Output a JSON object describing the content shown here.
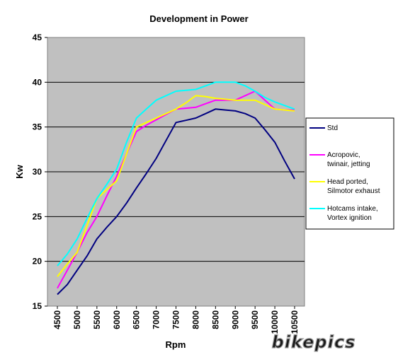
{
  "chart_data": {
    "type": "line",
    "title": "Development in Power",
    "xlabel": "Rpm",
    "ylabel": "Kw",
    "categories": [
      "4500",
      "5000",
      "5500",
      "6000",
      "6500",
      "7000",
      "7500",
      "8000",
      "8500",
      "9000",
      "9500",
      "10000",
      "10500"
    ],
    "ylim": [
      15,
      45
    ],
    "yticks": [
      15,
      20,
      25,
      30,
      35,
      40,
      45
    ],
    "grid": "horizontal",
    "legend_position": "right",
    "plot_background": "#c0c0c0",
    "series": [
      {
        "name": "Std",
        "color": "#000080",
        "x": [
          4500,
          4750,
          5000,
          5250,
          5500,
          5750,
          6000,
          6250,
          6500,
          6750,
          7000,
          7250,
          7500,
          7750,
          8000,
          8250,
          8500,
          8750,
          9000,
          9250,
          9500,
          9750,
          10000,
          10250,
          10500
        ],
        "values": [
          16.3,
          17.4,
          19.0,
          20.6,
          22.5,
          23.8,
          25.0,
          26.5,
          28.2,
          29.8,
          31.5,
          33.5,
          35.5,
          35.75,
          36.0,
          36.5,
          37.0,
          36.9,
          36.8,
          36.5,
          36.0,
          34.7,
          33.3,
          31.2,
          29.2
        ]
      },
      {
        "name": "Acropovic, twinair, jetting",
        "color": "#ff00ff",
        "x": [
          4500,
          4750,
          5000,
          5250,
          5500,
          5750,
          6000,
          6250,
          6500,
          6750,
          7000,
          7250,
          7500,
          7750,
          8000,
          8250,
          8500,
          8750,
          9000,
          9250,
          9500,
          9750,
          10000,
          10250,
          10500
        ],
        "values": [
          17.0,
          19.0,
          21.0,
          23.2,
          25.0,
          27.3,
          29.5,
          32.0,
          34.5,
          35.2,
          35.8,
          36.4,
          37.0,
          37.1,
          37.2,
          37.6,
          38.0,
          38.0,
          38.0,
          38.5,
          39.0,
          38.0,
          37.0,
          36.9,
          36.9
        ]
      },
      {
        "name": "Head ported, Silmotor exhaust",
        "color": "#ffff00",
        "x": [
          4500,
          4750,
          5000,
          5250,
          5500,
          5750,
          6000,
          6250,
          6500,
          6750,
          7000,
          7250,
          7500,
          7750,
          8000,
          8250,
          8500,
          8750,
          9000,
          9250,
          9500,
          9750,
          10000,
          10250,
          10500
        ],
        "values": [
          18.3,
          19.7,
          21.0,
          24.0,
          27.0,
          28.0,
          29.0,
          32.0,
          35.0,
          35.5,
          36.0,
          36.5,
          37.0,
          37.7,
          38.5,
          38.4,
          38.2,
          38.1,
          38.0,
          38.0,
          38.0,
          37.5,
          37.0,
          36.9,
          36.8
        ]
      },
      {
        "name": "Hotcams intake, Vortex ignition",
        "color": "#00ffff",
        "x": [
          4500,
          4750,
          5000,
          5250,
          5500,
          5750,
          6000,
          6250,
          6500,
          6750,
          7000,
          7250,
          7500,
          7750,
          8000,
          8250,
          8500,
          8750,
          9000,
          9250,
          9500,
          9750,
          10000,
          10250,
          10500
        ],
        "values": [
          19.5,
          20.8,
          22.5,
          24.8,
          27.0,
          28.6,
          30.3,
          33.3,
          36.0,
          37.0,
          38.0,
          38.5,
          39.0,
          39.1,
          39.2,
          39.6,
          40.0,
          40.0,
          40.0,
          39.6,
          39.0,
          38.3,
          37.8,
          37.4,
          37.0
        ]
      }
    ]
  },
  "watermark": {
    "text": "bikepics"
  }
}
